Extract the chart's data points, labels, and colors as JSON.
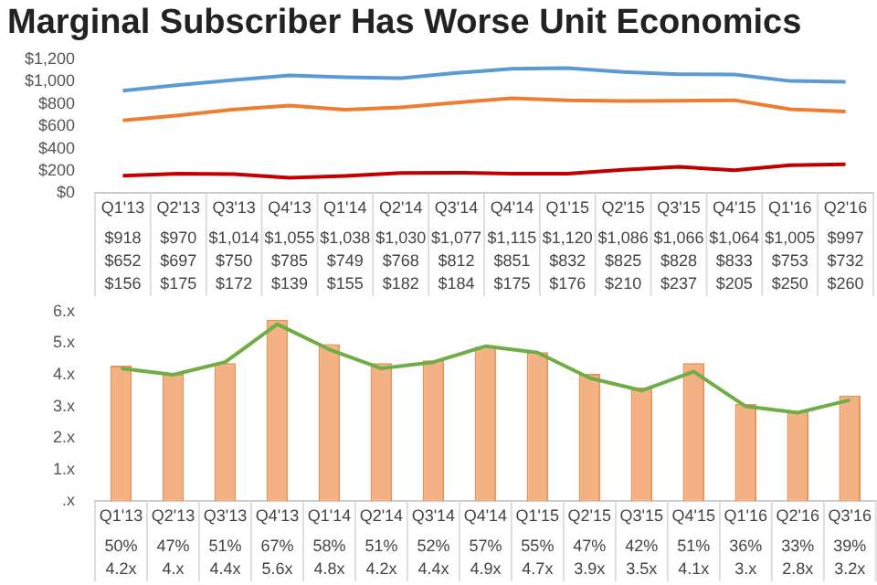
{
  "chart_data": [
    {
      "type": "line",
      "title": "Marginal Subscriber Has Worse Unit Economics",
      "categories": [
        "Q1'13",
        "Q2'13",
        "Q3'13",
        "Q4'13",
        "Q1'14",
        "Q2'14",
        "Q3'14",
        "Q4'14",
        "Q1'15",
        "Q2'15",
        "Q3'15",
        "Q4'15",
        "Q1'16",
        "Q2'16"
      ],
      "ylim": [
        0,
        1200
      ],
      "yticks": [
        {
          "value": 0,
          "label": "$0"
        },
        {
          "value": 200,
          "label": "$200"
        },
        {
          "value": 400,
          "label": "$400"
        },
        {
          "value": 600,
          "label": "$600"
        },
        {
          "value": 800,
          "label": "$800"
        },
        {
          "value": 1000,
          "label": "$1,000"
        },
        {
          "value": 1200,
          "label": "$1,200"
        }
      ],
      "series": [
        {
          "color": "#5b9bd5",
          "values": [
            918,
            970,
            1014,
            1055,
            1038,
            1030,
            1077,
            1115,
            1120,
            1086,
            1066,
            1064,
            1005,
            997
          ],
          "value_labels": [
            "$918",
            "$970",
            "$1,014",
            "$1,055",
            "$1,038",
            "$1,030",
            "$1,077",
            "$1,115",
            "$1,120",
            "$1,086",
            "$1,066",
            "$1,064",
            "$1,005",
            "$997"
          ]
        },
        {
          "color": "#ed7d31",
          "values": [
            652,
            697,
            750,
            785,
            749,
            768,
            812,
            851,
            832,
            825,
            828,
            833,
            753,
            732
          ],
          "value_labels": [
            "$652",
            "$697",
            "$750",
            "$785",
            "$749",
            "$768",
            "$812",
            "$851",
            "$832",
            "$825",
            "$828",
            "$833",
            "$753",
            "$732"
          ]
        },
        {
          "color": "#c00000",
          "values": [
            156,
            175,
            172,
            139,
            155,
            182,
            184,
            175,
            176,
            210,
            237,
            205,
            250,
            260
          ],
          "value_labels": [
            "$156",
            "$175",
            "$172",
            "$139",
            "$155",
            "$182",
            "$184",
            "$175",
            "$176",
            "$210",
            "$237",
            "$205",
            "$250",
            "$260"
          ]
        }
      ]
    },
    {
      "type": "bar",
      "categories": [
        "Q1'13",
        "Q2'13",
        "Q3'13",
        "Q4'13",
        "Q1'14",
        "Q2'14",
        "Q3'14",
        "Q4'14",
        "Q1'15",
        "Q2'15",
        "Q3'15",
        "Q4'15",
        "Q1'16",
        "Q2'16",
        "Q3'16"
      ],
      "ylim": [
        0,
        6
      ],
      "yticks": [
        {
          "value": 0,
          "label": ".x"
        },
        {
          "value": 1,
          "label": "1.x"
        },
        {
          "value": 2,
          "label": "2.x"
        },
        {
          "value": 3,
          "label": "3.x"
        },
        {
          "value": 4,
          "label": "4.x"
        },
        {
          "value": 5,
          "label": "5.x"
        },
        {
          "value": 6,
          "label": "6.x"
        }
      ],
      "series": [
        {
          "axis": "y2",
          "color": "#f4b183",
          "values": [
            50,
            47,
            51,
            67,
            58,
            51,
            52,
            57,
            55,
            47,
            42,
            51,
            36,
            33,
            39
          ],
          "value_labels": [
            "50%",
            "47%",
            "51%",
            "67%",
            "58%",
            "51%",
            "52%",
            "57%",
            "55%",
            "47%",
            "42%",
            "51%",
            "36%",
            "33%",
            "39%"
          ]
        },
        {
          "type": "line",
          "color": "#70ad47",
          "values": [
            4.2,
            4,
            4.4,
            5.6,
            4.8,
            4.2,
            4.4,
            4.9,
            4.7,
            3.9,
            3.5,
            4.1,
            3,
            2.8,
            3.2
          ],
          "value_labels": [
            "4.2x",
            "4.x",
            "4.4x",
            "5.6x",
            "4.8x",
            "4.2x",
            "4.4x",
            "4.9x",
            "4.7x",
            "3.9x",
            "3.5x",
            "4.1x",
            "3.x",
            "2.8x",
            "3.2x"
          ]
        }
      ]
    }
  ]
}
